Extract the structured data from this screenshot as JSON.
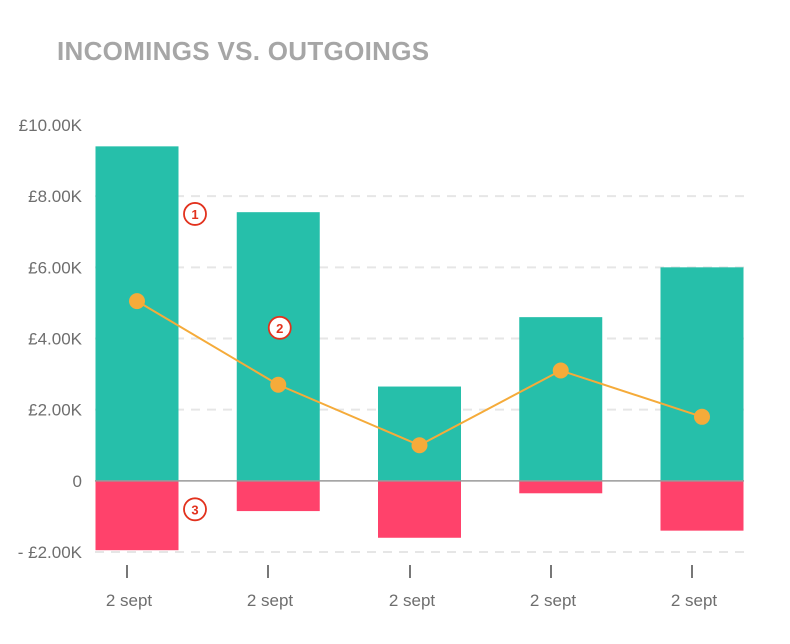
{
  "chart_data": {
    "type": "bar",
    "title": "INCOMINGS VS. OUTGOINGS",
    "categories": [
      "2 sept",
      "2 sept",
      "2 sept",
      "2 sept",
      "2 sept"
    ],
    "series": [
      {
        "type": "bar",
        "color": "#26bfaa",
        "values": [
          9400,
          7550,
          2650,
          4600,
          6000
        ]
      },
      {
        "type": "bar",
        "color": "#ff426b",
        "values": [
          -1950,
          -850,
          -1600,
          -350,
          -1400
        ]
      },
      {
        "type": "line",
        "color": "#f5ab3a",
        "values": [
          5050,
          2700,
          1000,
          3100,
          1800
        ]
      }
    ],
    "y_ticks": [
      {
        "value": 10000,
        "label": "£10.00K"
      },
      {
        "value": 8000,
        "label": "£8.00K"
      },
      {
        "value": 6000,
        "label": "£6.00K"
      },
      {
        "value": 4000,
        "label": "£4.00K"
      },
      {
        "value": 2000,
        "label": "£2.00K"
      },
      {
        "value": 0,
        "label": "0"
      },
      {
        "value": -2000,
        "label": "- £2.00K"
      }
    ],
    "ylim": [
      -2000,
      10000
    ],
    "grid": true,
    "annotations": [
      {
        "label": "1",
        "target": "income bar",
        "category_index": 0,
        "value": 7500
      },
      {
        "label": "2",
        "target": "line",
        "category_index": 0.6,
        "value": 4300
      },
      {
        "label": "3",
        "target": "outgoing bar",
        "category_index": 0,
        "value": -800
      }
    ],
    "colors": {
      "title": "#a6a6a6",
      "tick_text": "#6e6e6e",
      "grid": "#e6e6e6",
      "zero_line": "#999999",
      "annotation": "#e2311d"
    }
  }
}
